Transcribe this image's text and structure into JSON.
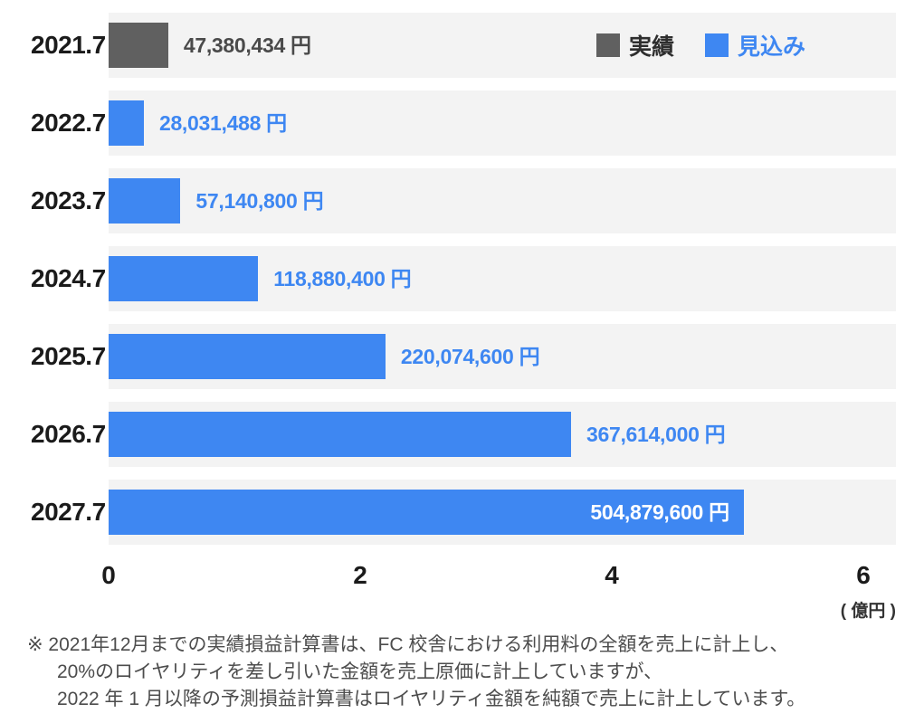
{
  "chart_data": {
    "type": "bar",
    "orientation": "horizontal",
    "title": "",
    "categories": [
      "2021.7",
      "2022.7",
      "2023.7",
      "2024.7",
      "2025.7",
      "2026.7",
      "2027.7"
    ],
    "values": [
      47380434,
      28031488,
      57140800,
      118880400,
      220074600,
      367614000,
      504879600
    ],
    "value_labels": [
      "47,380,434 円",
      "28,031,488 円",
      "57,140,800 円",
      "118,880,400 円",
      "220,074,600 円",
      "367,614,000 円",
      "504,879,600 円"
    ],
    "bar_types": [
      "actual",
      "forecast",
      "forecast",
      "forecast",
      "forecast",
      "forecast",
      "forecast"
    ],
    "xlim": [
      0,
      6
    ],
    "xticks": [
      "0",
      "2",
      "4",
      "6"
    ],
    "x_unit_label": "( 億円 )",
    "legend_entries": [
      {
        "label": "実績",
        "color": "#606060"
      },
      {
        "label": "見込み",
        "color": "#3e87f2"
      }
    ],
    "legend_position": "top-right",
    "grid": false
  },
  "legend": {
    "actual_label": "実績",
    "forecast_label": "見込み"
  },
  "colors": {
    "actual": "#606060",
    "forecast": "#3e87f2",
    "band": "#f3f3f3",
    "value_actual": "#4a4a4a",
    "value_inside": "#ffffff"
  },
  "footnote": {
    "line1": "※ 2021年12月までの実績損益計算書は、FC 校舎における利用料の全額を売上に計上し、",
    "line2": "20%のロイヤリティを差し引いた金額を売上原価に計上していますが、",
    "line3": "2022 年 1 月以降の予測損益計算書はロイヤリティ金額を純額で売上に計上しています。"
  }
}
